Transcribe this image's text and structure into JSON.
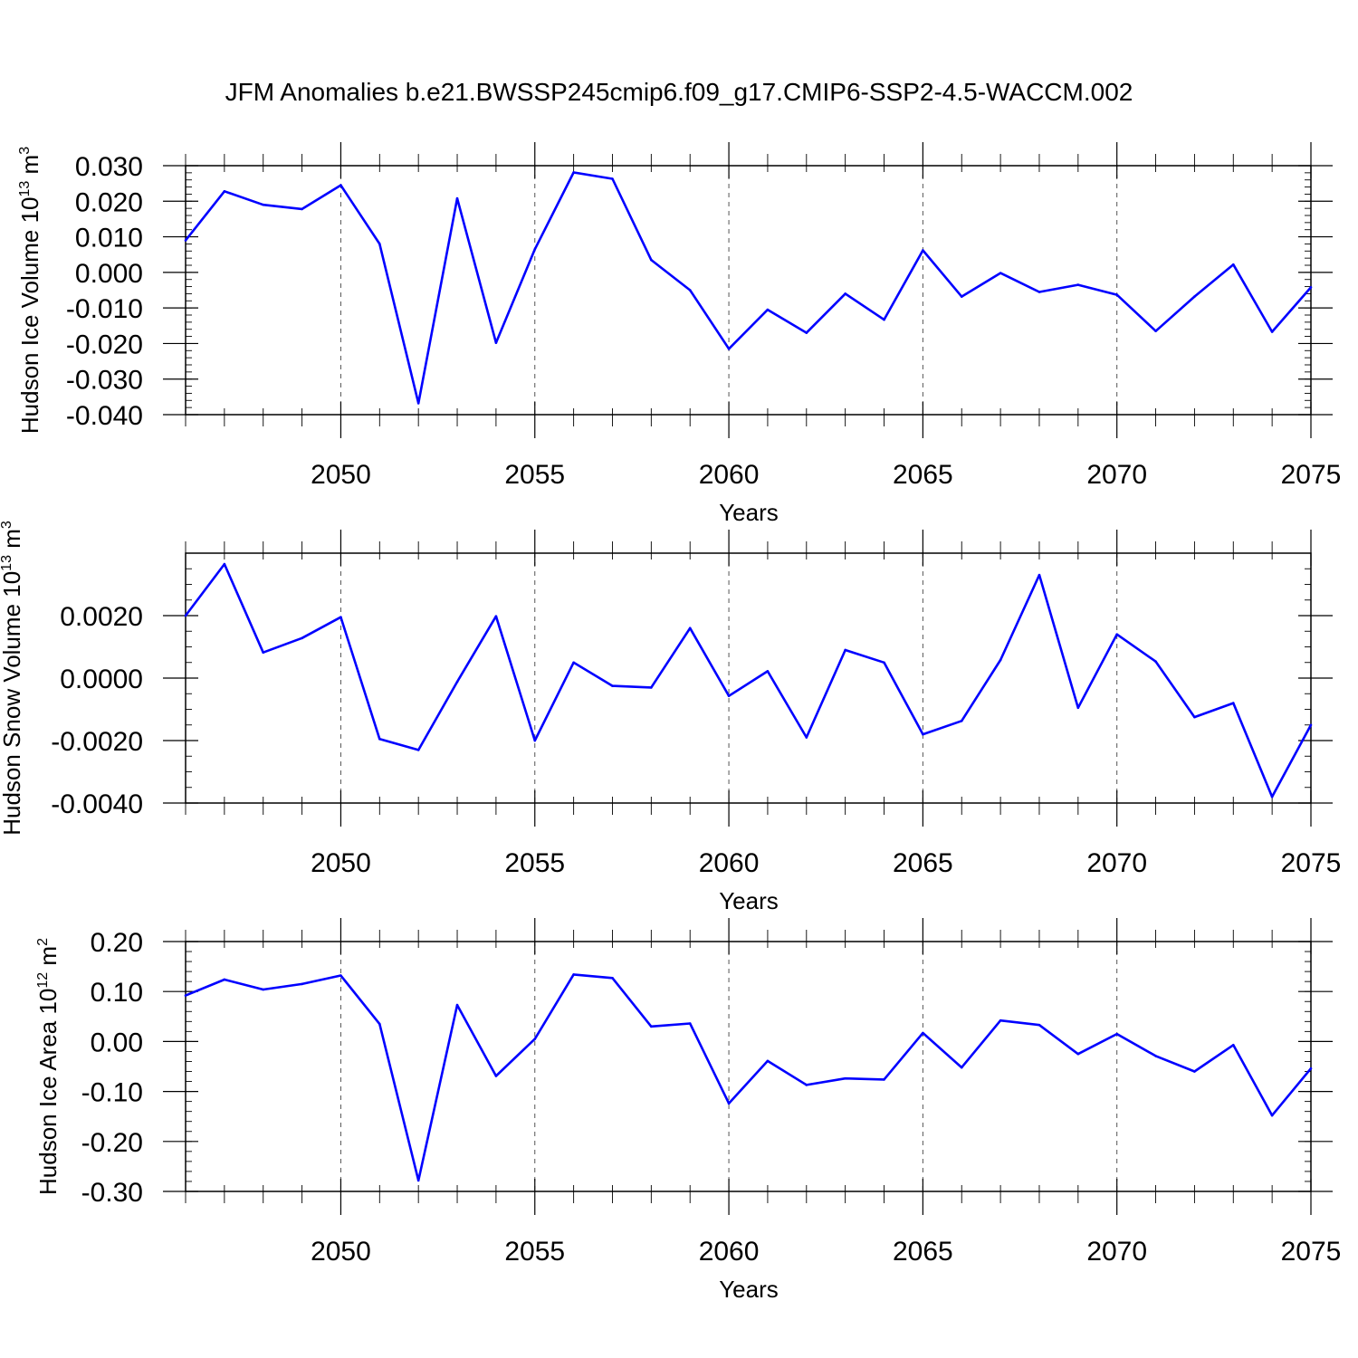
{
  "title": "JFM Anomalies b.e21.BWSSP245cmip6.f09_g17.CMIP6-SSP2-4.5-WACCM.002",
  "line_color": "#0000ff",
  "chart_data": [
    {
      "type": "line",
      "ylabel": "Hudson Ice Volume 10",
      "ylabel_exponent": "13",
      "ylabel_unit": "m",
      "ylabel_unit_exponent": "3",
      "xlabel": "Years",
      "xlim": [
        2046,
        2075
      ],
      "ylim": [
        -0.04,
        0.03
      ],
      "xticks": [
        2050,
        2055,
        2060,
        2065,
        2070,
        2075
      ],
      "xtick_labels": [
        "2050",
        "2055",
        "2060",
        "2065",
        "2070",
        "2075"
      ],
      "yticks": [
        0.03,
        0.02,
        0.01,
        0.0,
        -0.01,
        -0.02,
        -0.03,
        -0.04
      ],
      "ytick_labels": [
        "0.030",
        "0.020",
        "0.010",
        "0.000",
        "-0.010",
        "-0.020",
        "-0.030",
        "-0.040"
      ],
      "grid": "vertical dashed at major x ticks",
      "x": [
        2046,
        2047,
        2048,
        2049,
        2050,
        2051,
        2052,
        2053,
        2054,
        2055,
        2056,
        2057,
        2058,
        2059,
        2060,
        2061,
        2062,
        2063,
        2064,
        2065,
        2066,
        2067,
        2068,
        2069,
        2070,
        2071,
        2072,
        2073,
        2074,
        2075
      ],
      "values": [
        0.009,
        0.0228,
        0.019,
        0.0178,
        0.0245,
        0.008,
        -0.0368,
        0.0208,
        -0.0198,
        0.0065,
        0.0281,
        0.0263,
        0.0035,
        -0.005,
        -0.0215,
        -0.0105,
        -0.017,
        -0.006,
        -0.0133,
        0.0062,
        -0.0068,
        -0.0002,
        -0.0055,
        -0.0035,
        -0.0063,
        -0.0165,
        -0.0068,
        0.0022,
        -0.0167,
        -0.0042
      ]
    },
    {
      "type": "line",
      "ylabel": "Hudson Snow Volume 10",
      "ylabel_exponent": "13",
      "ylabel_unit": "m",
      "ylabel_unit_exponent": "3",
      "xlabel": "Years",
      "xlim": [
        2046,
        2075
      ],
      "ylim": [
        -0.004,
        0.004
      ],
      "xticks": [
        2050,
        2055,
        2060,
        2065,
        2070,
        2075
      ],
      "xtick_labels": [
        "2050",
        "2055",
        "2060",
        "2065",
        "2070",
        "2075"
      ],
      "yticks": [
        0.002,
        0.0,
        -0.002,
        -0.004
      ],
      "ytick_labels": [
        "0.0020",
        "0.0000",
        "-0.0020",
        "-0.0040"
      ],
      "grid": "vertical dashed at major x ticks",
      "x": [
        2046,
        2047,
        2048,
        2049,
        2050,
        2051,
        2052,
        2053,
        2054,
        2055,
        2056,
        2057,
        2058,
        2059,
        2060,
        2061,
        2062,
        2063,
        2064,
        2065,
        2066,
        2067,
        2068,
        2069,
        2070,
        2071,
        2072,
        2073,
        2074,
        2075
      ],
      "values": [
        0.002,
        0.00365,
        0.00082,
        0.00128,
        0.00195,
        -0.00195,
        -0.0023,
        -0.00012,
        0.00198,
        -0.002,
        0.0005,
        -0.00025,
        -0.0003,
        0.0016,
        -0.00057,
        0.00022,
        -0.0019,
        0.0009,
        0.0005,
        -0.0018,
        -0.00137,
        0.00058,
        0.0033,
        -0.00095,
        0.0014,
        0.00053,
        -0.00125,
        -0.0008,
        -0.0038,
        -0.0015
      ]
    },
    {
      "type": "line",
      "ylabel": "Hudson Ice Area 10",
      "ylabel_exponent": "12",
      "ylabel_unit": "m",
      "ylabel_unit_exponent": "2",
      "xlabel": "Years",
      "xlim": [
        2046,
        2075
      ],
      "ylim": [
        -0.3,
        0.2
      ],
      "xticks": [
        2050,
        2055,
        2060,
        2065,
        2070,
        2075
      ],
      "xtick_labels": [
        "2050",
        "2055",
        "2060",
        "2065",
        "2070",
        "2075"
      ],
      "yticks": [
        0.2,
        0.1,
        0.0,
        -0.1,
        -0.2,
        -0.3
      ],
      "ytick_labels": [
        "0.20",
        "0.10",
        "0.00",
        "-0.10",
        "-0.20",
        "-0.30"
      ],
      "grid": "vertical dashed at major x ticks",
      "x": [
        2046,
        2047,
        2048,
        2049,
        2050,
        2051,
        2052,
        2053,
        2054,
        2055,
        2056,
        2057,
        2058,
        2059,
        2060,
        2061,
        2062,
        2063,
        2064,
        2065,
        2066,
        2067,
        2068,
        2069,
        2070,
        2071,
        2072,
        2073,
        2074,
        2075
      ],
      "values": [
        0.092,
        0.124,
        0.104,
        0.115,
        0.132,
        0.035,
        -0.278,
        0.073,
        -0.069,
        0.005,
        0.134,
        0.127,
        0.03,
        0.036,
        -0.124,
        -0.039,
        -0.087,
        -0.074,
        -0.076,
        0.017,
        -0.052,
        0.042,
        0.033,
        -0.025,
        0.015,
        -0.029,
        -0.06,
        -0.007,
        -0.148,
        -0.054
      ]
    }
  ]
}
